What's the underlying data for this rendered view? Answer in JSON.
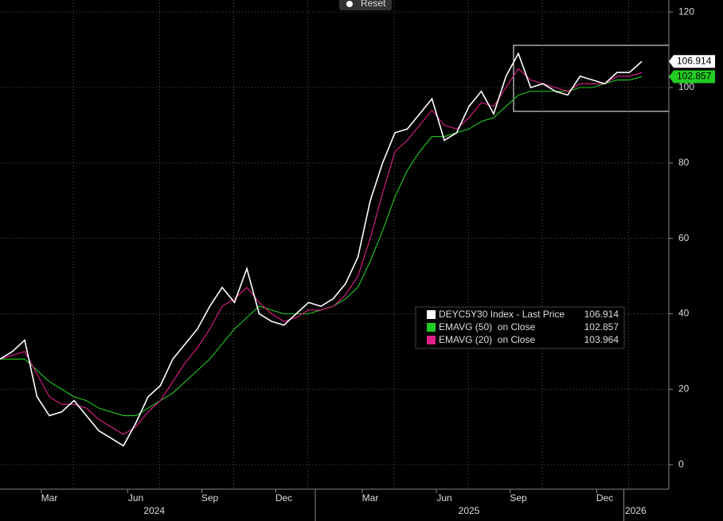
{
  "chart_data": {
    "type": "line",
    "reset_button": "Reset",
    "categories": [
      null,
      null,
      null,
      null,
      "Mar",
      null,
      null,
      null,
      null,
      null,
      null,
      "Jun",
      null,
      null,
      null,
      null,
      null,
      "Sep",
      null,
      null,
      null,
      null,
      null,
      "Dec",
      null,
      null,
      null,
      null,
      null,
      null,
      "Mar",
      null,
      null,
      null,
      null,
      null,
      "Jun",
      null,
      null,
      null,
      null,
      null,
      "Sep",
      null,
      null,
      null,
      null,
      null,
      null,
      "Dec",
      null,
      null,
      null
    ],
    "x_groups": [
      {
        "label": "2024",
        "from": 0,
        "to": 25
      },
      {
        "label": "2025",
        "from": 26,
        "to": 50
      },
      {
        "label": "2026",
        "from": 51,
        "to": 52
      }
    ],
    "series": [
      {
        "name": "DEYC5Y30 Index - Last Price",
        "color": "#ffffff",
        "values": [
          28,
          30,
          33,
          18,
          13,
          14,
          17,
          13,
          9,
          7,
          5,
          11,
          18,
          21,
          28,
          32,
          36,
          42,
          47,
          43,
          52,
          40,
          38,
          37,
          40,
          43,
          42,
          44,
          48,
          55,
          70,
          80,
          88,
          89,
          93,
          97,
          86,
          88,
          95,
          99,
          93,
          103,
          109,
          100,
          101,
          99,
          98,
          103,
          102,
          101,
          104,
          104,
          106.914
        ]
      },
      {
        "name": "EMAVG (50)  on Close",
        "color": "#22cc22",
        "values": [
          28,
          28,
          28,
          25,
          22,
          20,
          18,
          17,
          15,
          14,
          13,
          13,
          15,
          17,
          19,
          22,
          25,
          28,
          32,
          36,
          39,
          42,
          41,
          40,
          40,
          40,
          41,
          42,
          44,
          47,
          54,
          62,
          71,
          78,
          83,
          87,
          87,
          88,
          89,
          91,
          92,
          95,
          98,
          99,
          99,
          99,
          99,
          100,
          100,
          101,
          102,
          102,
          102.857
        ]
      },
      {
        "name": "EMAVG (20)  on Close",
        "color": "#e0208a",
        "values": [
          28,
          29,
          30,
          24,
          18,
          16,
          16,
          15,
          12,
          10,
          8,
          10,
          14,
          17,
          22,
          27,
          31,
          36,
          42,
          44,
          47,
          43,
          40,
          38,
          39,
          41,
          41,
          42,
          45,
          50,
          60,
          72,
          83,
          86,
          90,
          94,
          90,
          89,
          92,
          96,
          95,
          100,
          105,
          102,
          101,
          100,
          99,
          101,
          101,
          101,
          103,
          103,
          103.964
        ]
      }
    ],
    "ylim": [
      -6.5,
      123.2
    ],
    "yticks": [
      0,
      20,
      40,
      60,
      80,
      100,
      120
    ],
    "grid": true,
    "legend": "lower-right"
  }
}
